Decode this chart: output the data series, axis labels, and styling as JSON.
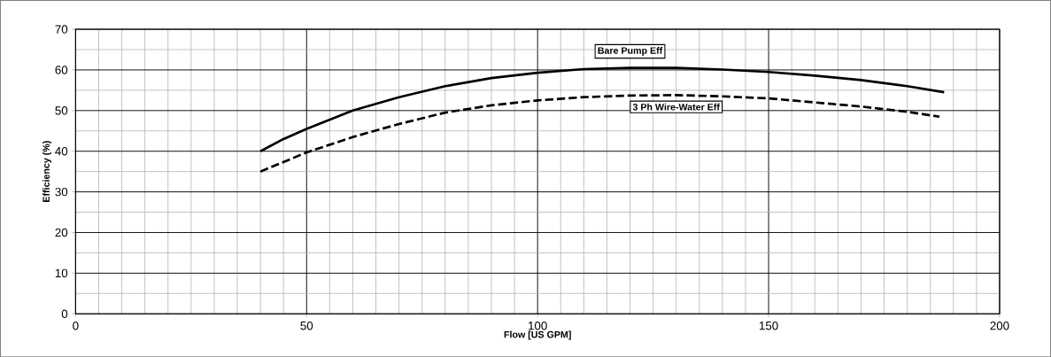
{
  "chart_data": {
    "type": "line",
    "xlabel": "Flow [US GPM]",
    "ylabel": "Efficiency (%)",
    "xlim": [
      0,
      200
    ],
    "xticks": [
      0,
      50,
      100,
      150,
      200
    ],
    "ylim": [
      0,
      70
    ],
    "yticks": [
      0,
      10,
      20,
      30,
      40,
      50,
      60,
      70
    ],
    "grid": true,
    "series": [
      {
        "name": "Bare Pump Eff",
        "color": "#000000",
        "line_style": "solid",
        "x": [
          40,
          45,
          50,
          60,
          70,
          80,
          90,
          100,
          110,
          120,
          130,
          140,
          150,
          160,
          170,
          180,
          188
        ],
        "values": [
          40,
          43,
          45.5,
          50,
          53.3,
          56,
          58,
          59.3,
          60.2,
          60.5,
          60.5,
          60.1,
          59.5,
          58.6,
          57.5,
          56,
          54.5
        ]
      },
      {
        "name": "3 Ph Wire-Water Eff",
        "color": "#000000",
        "line_style": "dashed",
        "x": [
          40,
          50,
          60,
          70,
          80,
          90,
          100,
          110,
          120,
          130,
          140,
          150,
          160,
          170,
          180,
          187
        ],
        "values": [
          35,
          39.7,
          43.5,
          46.7,
          49.5,
          51.3,
          52.5,
          53.3,
          53.7,
          53.8,
          53.5,
          53,
          52,
          51,
          49.7,
          48.5
        ]
      }
    ]
  }
}
